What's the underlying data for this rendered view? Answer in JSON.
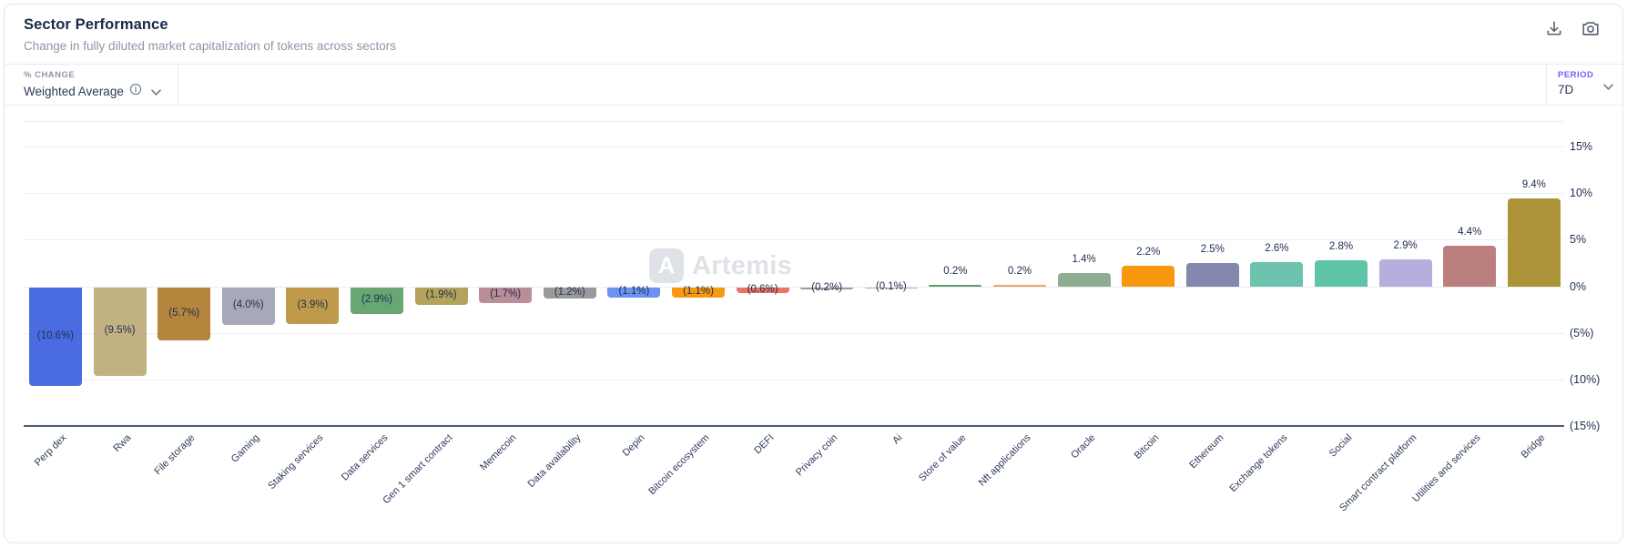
{
  "header": {
    "title": "Sector Performance",
    "subtitle": "Change in fully diluted market capitalization of tokens across sectors"
  },
  "controls": {
    "metric_label": "% CHANGE",
    "metric_value": "Weighted Average",
    "period_label": "PERIOD",
    "period_value": "7D"
  },
  "watermark": {
    "logo_letter": "A",
    "text": "Artemis"
  },
  "colors": {
    "title": "#19294a",
    "subtitle": "#8e96a8",
    "period_accent": "#7a5cf5",
    "gridline": "#eceef1",
    "axis_line": "#4e5d77",
    "watermark": "#dfe2e7"
  },
  "chart_data": {
    "type": "bar",
    "title": "Sector Performance",
    "subtitle": "Change in fully diluted market capitalization of tokens across sectors",
    "metric": "Weighted Average",
    "period": "7D",
    "unit": "%",
    "ylim": [
      -15,
      17.5
    ],
    "grid": true,
    "legend": "none",
    "y_ticks": [
      {
        "value": 15,
        "label": "15%"
      },
      {
        "value": 10,
        "label": "10%"
      },
      {
        "value": 5,
        "label": "5%"
      },
      {
        "value": 0,
        "label": "0%"
      },
      {
        "value": -5,
        "label": "(5%)"
      },
      {
        "value": -10,
        "label": "(10%)"
      },
      {
        "value": -15,
        "label": "(15%)"
      }
    ],
    "categories": [
      "Perp dex",
      "Rwa",
      "File storage",
      "Gaming",
      "Staking services",
      "Data services",
      "Gen 1 smart contract",
      "Memecoin",
      "Data availability",
      "Depin",
      "Bitcoin ecosystem",
      "DEFI",
      "Privacy coin",
      "Ai",
      "Store of value",
      "Nft applications",
      "Oracle",
      "Bitcoin",
      "Ethereum",
      "Exchange tokens",
      "Social",
      "Smart contract platform",
      "Utilities and services",
      "Bridge"
    ],
    "values": [
      -10.6,
      -9.5,
      -5.7,
      -4.0,
      -3.9,
      -2.9,
      -1.9,
      -1.7,
      -1.2,
      -1.1,
      -1.1,
      -0.6,
      -0.2,
      -0.1,
      0.2,
      0.2,
      1.4,
      2.2,
      2.5,
      2.6,
      2.8,
      2.9,
      4.4,
      9.4
    ],
    "value_labels": [
      "(10.6%)",
      "(9.5%)",
      "(5.7%)",
      "(4.0%)",
      "(3.9%)",
      "(2.9%)",
      "(1.9%)",
      "(1.7%)",
      "(1.2%)",
      "(1.1%)",
      "(1.1%)",
      "(0.6%)",
      "(0.2%)",
      "(0.1%)",
      "0.2%",
      "0.2%",
      "1.4%",
      "2.2%",
      "2.5%",
      "2.6%",
      "2.8%",
      "2.9%",
      "4.4%",
      "9.4%"
    ],
    "bar_colors": [
      "#4a6ce0",
      "#c2b183",
      "#b5853e",
      "#a9a7ba",
      "#bf9a4b",
      "#68a674",
      "#b4a35c",
      "#bb8d97",
      "#9a9a9a",
      "#6b93f2",
      "#f8990f",
      "#ee7366",
      "#9b9da0",
      "#b0b2b5",
      "#609b6e",
      "#f2a263",
      "#8fac93",
      "#f8980f",
      "#8487ad",
      "#6dc2ad",
      "#5ec3a7",
      "#b5afdd",
      "#bb7f7e",
      "#ad9438"
    ]
  }
}
